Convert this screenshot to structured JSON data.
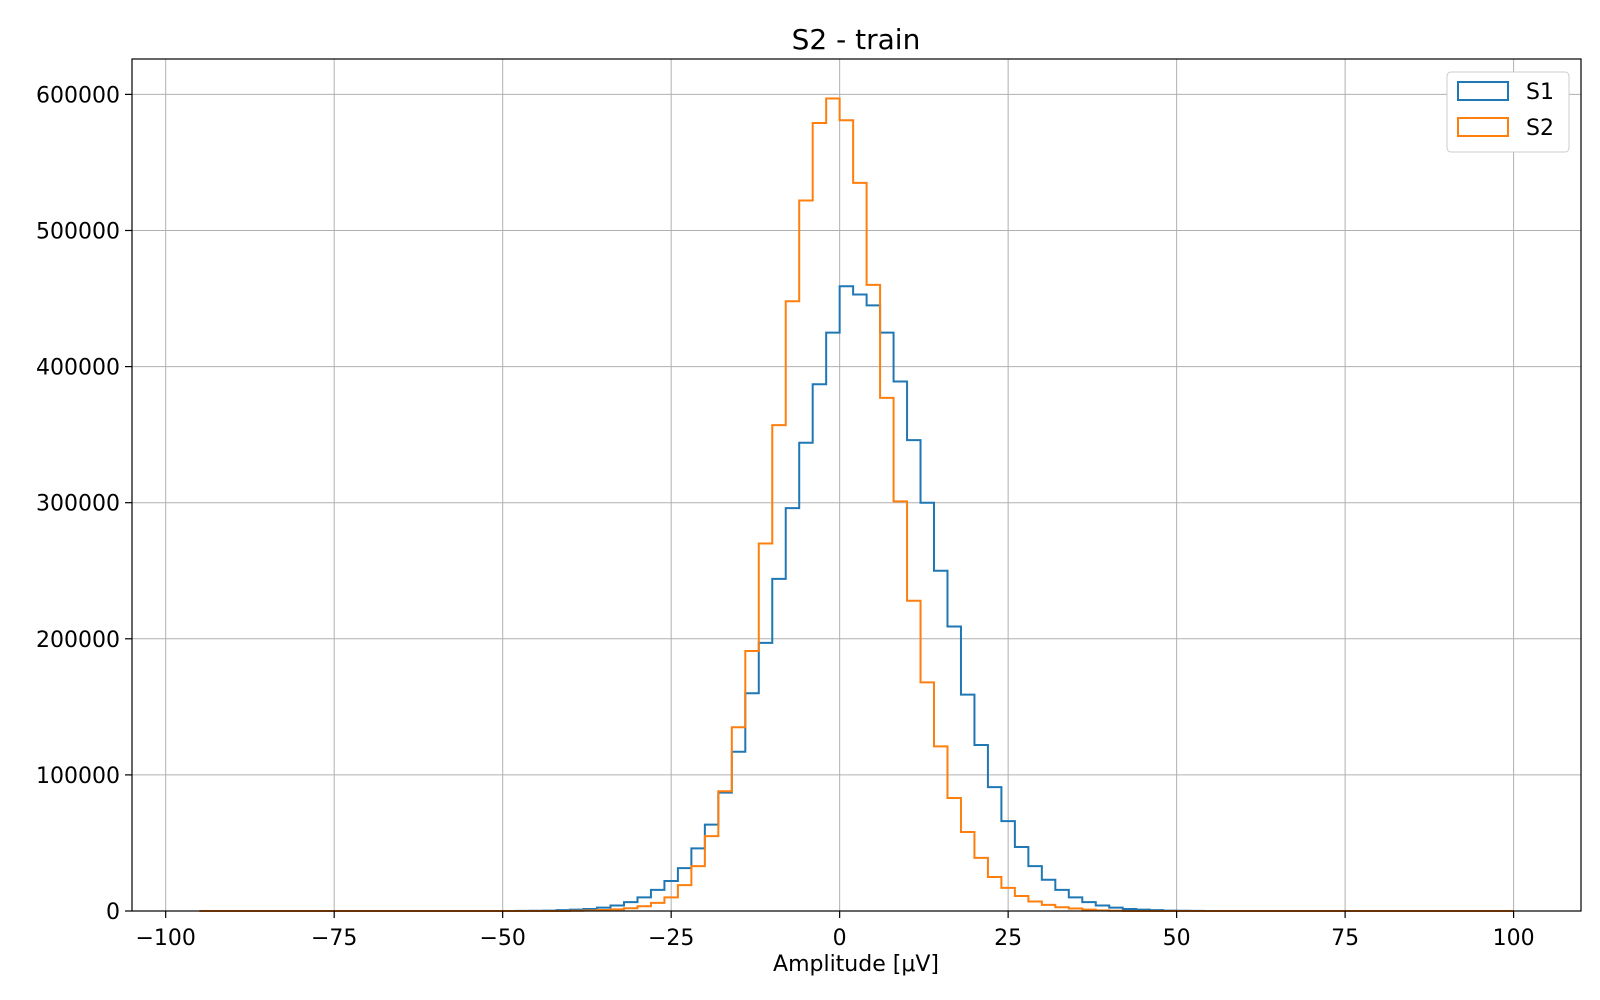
{
  "chart_data": {
    "type": "histogram",
    "title": "S2 - train",
    "xlabel": "Amplitude [μV]",
    "ylabel": "",
    "xlim": [
      -105,
      110
    ],
    "ylim": [
      0,
      626000
    ],
    "grid": true,
    "legend_position": "top-right",
    "x_ticks": [
      -100,
      -75,
      -50,
      -25,
      0,
      25,
      50,
      75,
      100
    ],
    "x_tick_labels": [
      "−100",
      "−75",
      "−50",
      "−25",
      "0",
      "25",
      "50",
      "75",
      "100"
    ],
    "y_ticks": [
      0,
      100000,
      200000,
      300000,
      400000,
      500000,
      600000
    ],
    "y_tick_labels": [
      "0",
      "100000",
      "200000",
      "300000",
      "400000",
      "500000",
      "600000"
    ],
    "series": [
      {
        "name": "S1",
        "color": "#1f77b4",
        "bin_edges": [
          -50,
          -48,
          -46,
          -44,
          -42,
          -40,
          -38,
          -36,
          -34,
          -32,
          -30,
          -28,
          -26,
          -24,
          -22,
          -20,
          -18,
          -16,
          -14,
          -12,
          -10,
          -8,
          -6,
          -4,
          -2,
          0,
          2,
          4,
          6,
          8,
          10,
          12,
          14,
          16,
          18,
          20,
          22,
          24,
          26,
          28,
          30,
          32,
          34,
          36,
          38,
          40,
          42,
          44,
          46,
          48,
          50,
          52,
          54
        ],
        "counts": [
          0,
          100,
          200,
          300,
          600,
          1000,
          1500,
          2500,
          4000,
          6500,
          10000,
          15500,
          22000,
          31500,
          46000,
          63500,
          87000,
          117000,
          160000,
          197000,
          244000,
          296000,
          344000,
          387000,
          425000,
          459000,
          453000,
          445000,
          425000,
          389000,
          346000,
          300000,
          250000,
          209000,
          159000,
          122000,
          91000,
          66000,
          47000,
          33000,
          23000,
          15500,
          10000,
          6500,
          4000,
          2500,
          1500,
          1000,
          600,
          300,
          150,
          50
        ]
      },
      {
        "name": "S2",
        "color": "#ff7f0e",
        "bin_edges": [
          -95,
          -40,
          -38,
          -36,
          -34,
          -32,
          -30,
          -28,
          -26,
          -24,
          -22,
          -20,
          -18,
          -16,
          -14,
          -12,
          -10,
          -8,
          -6,
          -4,
          -2,
          0,
          2,
          4,
          6,
          8,
          10,
          12,
          14,
          16,
          18,
          20,
          22,
          24,
          26,
          28,
          30,
          32,
          34,
          36,
          38,
          40,
          42,
          100
        ],
        "counts": [
          0,
          200,
          400,
          700,
          1200,
          2000,
          3500,
          6000,
          10000,
          19000,
          33000,
          55000,
          88000,
          135000,
          191000,
          270000,
          357000,
          448000,
          522000,
          579000,
          597000,
          581000,
          535000,
          460000,
          377000,
          301000,
          228000,
          168000,
          121000,
          83000,
          58000,
          39000,
          25000,
          17000,
          11000,
          7000,
          4500,
          2800,
          1800,
          1000,
          500,
          200,
          0
        ]
      }
    ]
  }
}
